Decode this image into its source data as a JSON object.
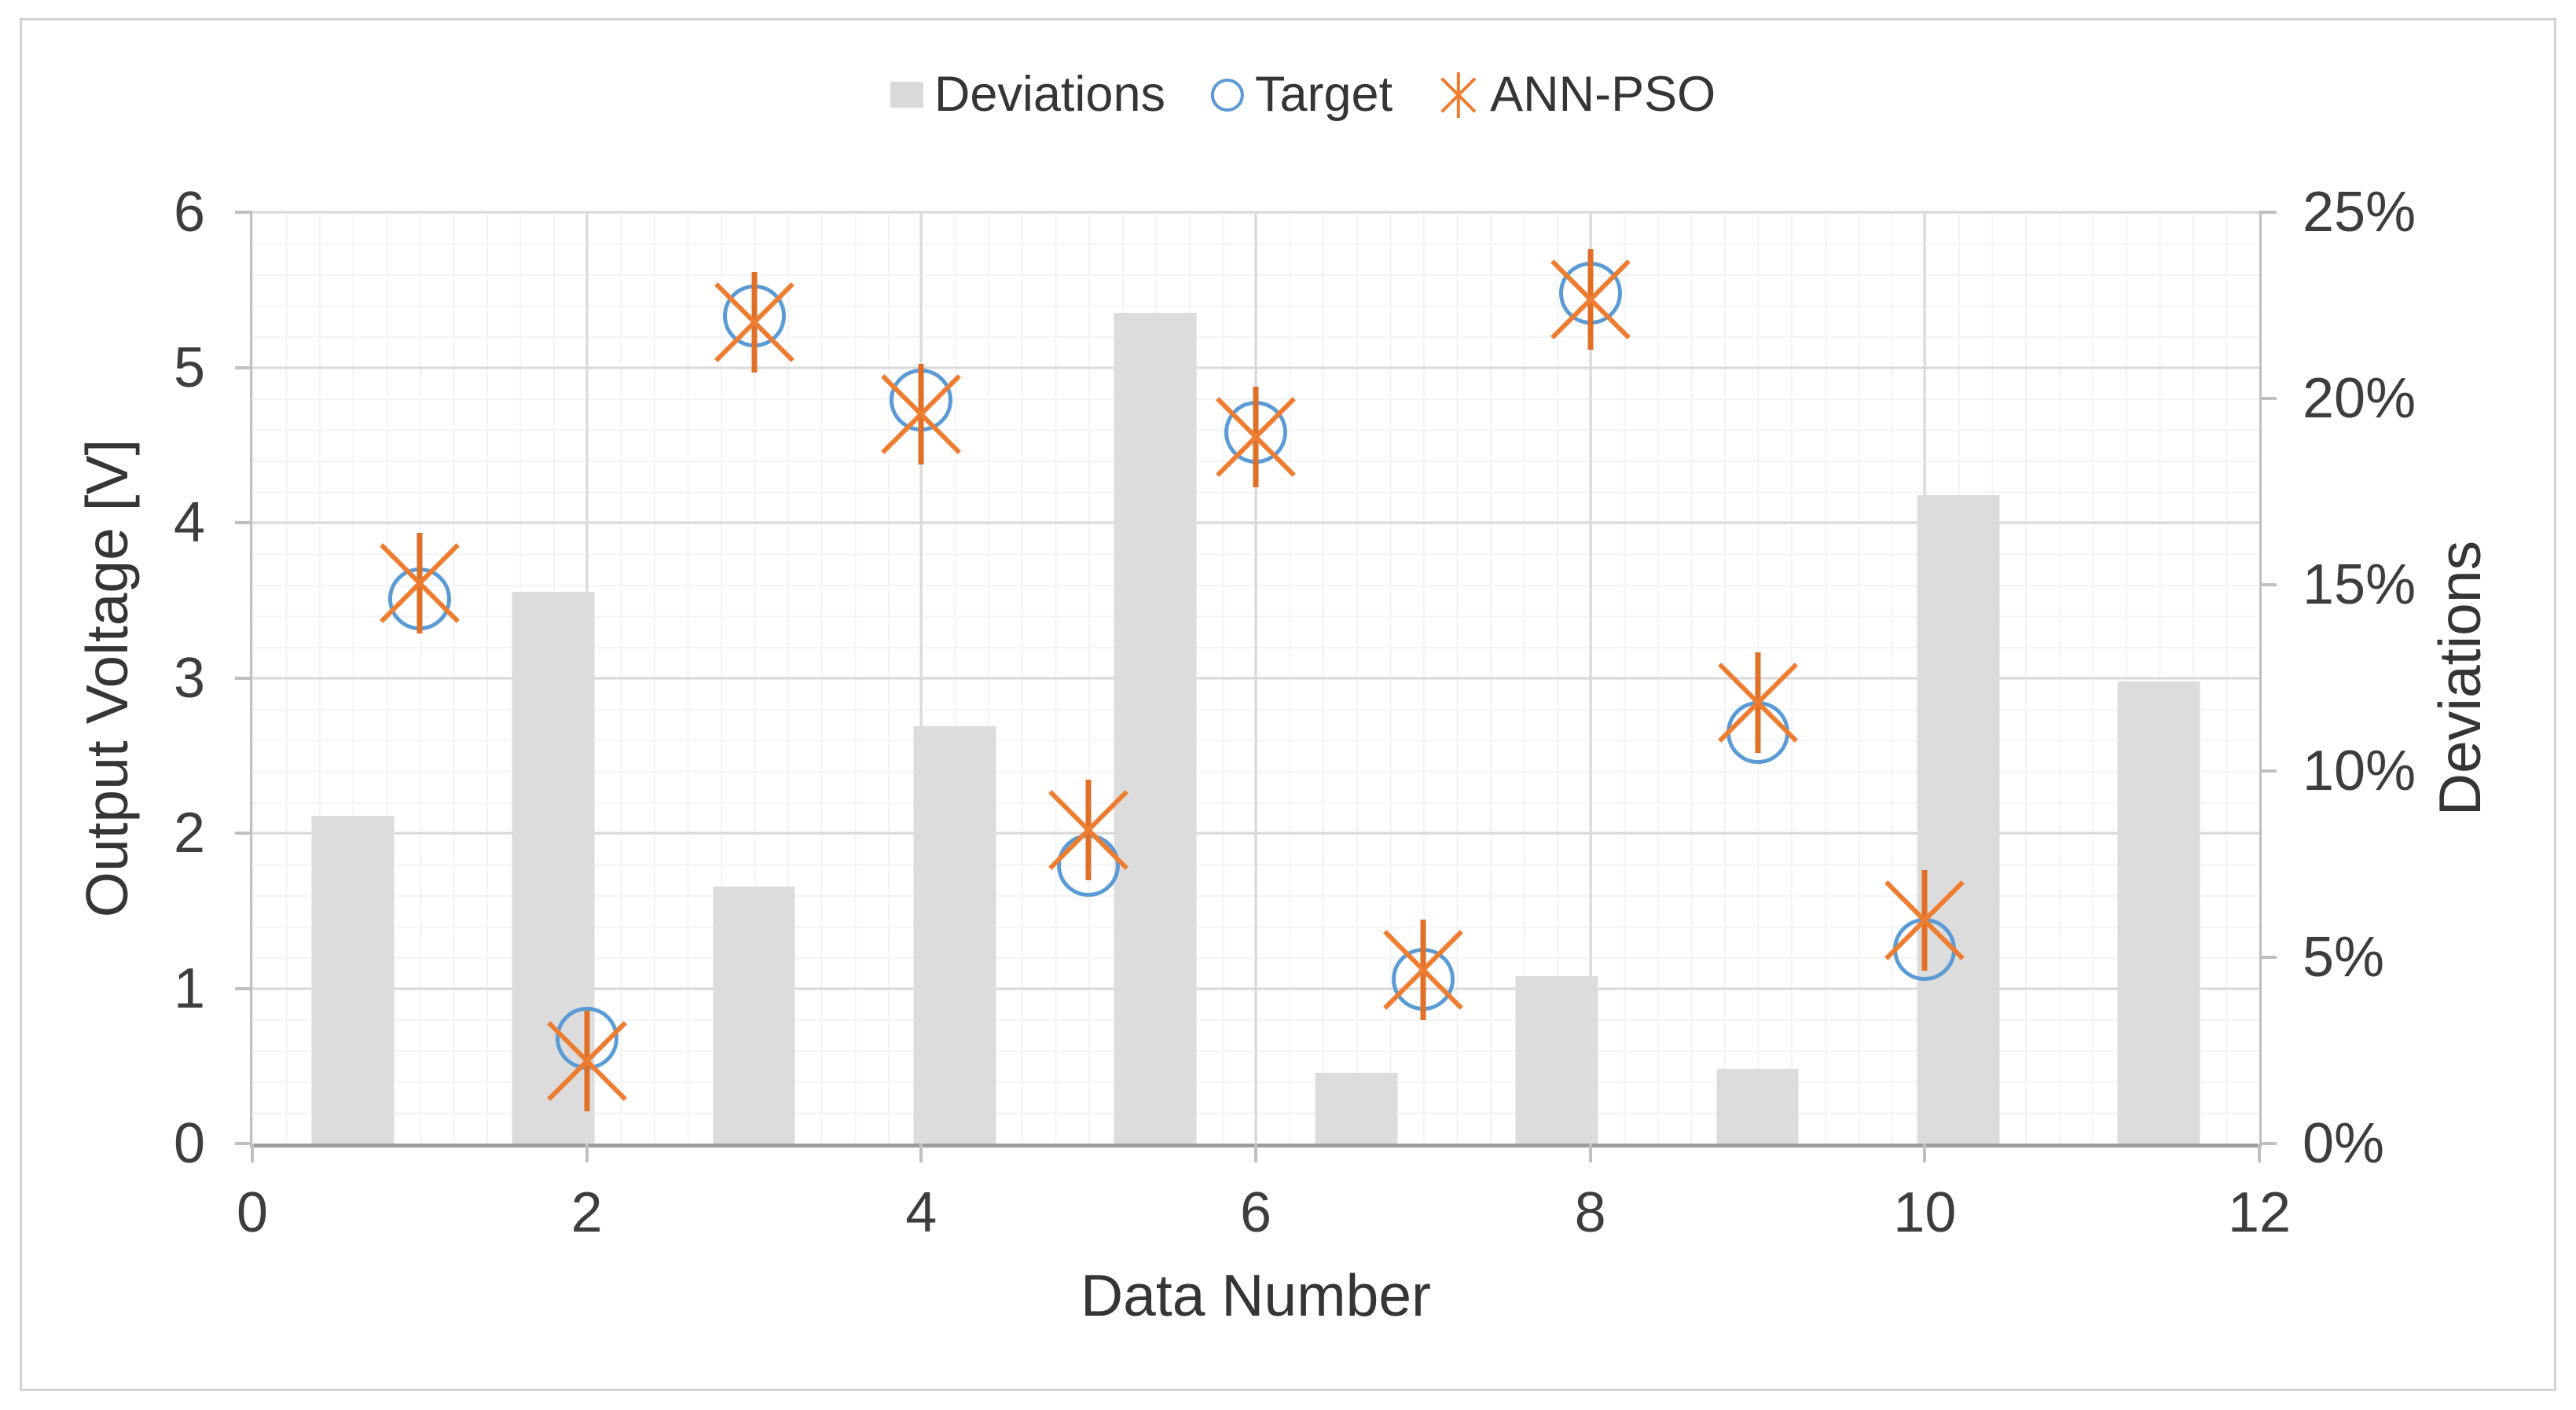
{
  "colors": {
    "bar_fill": "#dcdcdc",
    "target_stroke": "#5b9bd5",
    "ann_pso_stroke": "#ed7d31",
    "major_gridline": "#d9d9d9",
    "axis_line": "#bfbfbf",
    "text": "#3d3d3d"
  },
  "legend": {
    "position": "top-center",
    "items": [
      {
        "label": "Deviations",
        "marker": "gray-square"
      },
      {
        "label": "Target",
        "marker": "blue-open-circle"
      },
      {
        "label": "ANN-PSO",
        "marker": "orange-asterisk"
      }
    ]
  },
  "chart_data": {
    "type": "combo-bar-scatter",
    "title": "",
    "grid": true,
    "legend_position": "top",
    "x_axis": {
      "label": "Data Number",
      "min": 0,
      "max": 12,
      "tick_values": [
        0,
        2,
        4,
        6,
        8,
        10,
        12
      ],
      "tick_labels": [
        "0",
        "2",
        "4",
        "6",
        "8",
        "10",
        "12"
      ],
      "gridline_values": [
        2,
        4,
        6,
        8,
        10
      ]
    },
    "y_axis_left": {
      "label": "Output Voltage [V]",
      "min": 0,
      "max": 6,
      "tick_values": [
        0,
        1,
        2,
        3,
        4,
        5,
        6
      ],
      "tick_labels": [
        "0",
        "1",
        "2",
        "3",
        "4",
        "5",
        "6"
      ],
      "gridline_values": [
        1,
        2,
        3,
        4,
        5,
        6
      ]
    },
    "y_axis_right": {
      "label": "Deviations",
      "min": 0,
      "max": 25,
      "unit": "%",
      "tick_values": [
        0,
        5,
        10,
        15,
        20,
        25
      ],
      "tick_labels": [
        "0%",
        "5%",
        "10%",
        "15%",
        "20%",
        "25%"
      ]
    },
    "series": [
      {
        "name": "Deviations",
        "type": "bar",
        "axis": "right",
        "marker": "gray-bar",
        "categories": [
          1,
          2,
          3,
          4,
          5,
          6,
          7,
          8,
          9,
          10
        ],
        "values_percent": [
          8.8,
          14.8,
          6.9,
          11.2,
          22.3,
          1.9,
          4.5,
          2.0,
          17.4,
          12.4
        ],
        "note": "10 category bars spread evenly across x-axis 0-12, centers at 0.6+1.2k"
      },
      {
        "name": "Target",
        "type": "scatter",
        "axis": "left",
        "marker": "open-circle",
        "x": [
          1,
          2,
          3,
          4,
          5,
          6,
          7,
          8,
          9,
          10
        ],
        "y_volts": [
          3.51,
          0.68,
          5.33,
          4.79,
          1.79,
          4.58,
          1.06,
          5.48,
          2.65,
          1.25
        ]
      },
      {
        "name": "ANN-PSO",
        "type": "scatter",
        "axis": "left",
        "marker": "asterisk",
        "x": [
          1,
          2,
          3,
          4,
          5,
          6,
          7,
          8,
          9,
          10
        ],
        "y_volts": [
          3.61,
          0.53,
          5.29,
          4.7,
          2.02,
          4.55,
          1.12,
          5.44,
          2.84,
          1.44
        ]
      }
    ]
  }
}
